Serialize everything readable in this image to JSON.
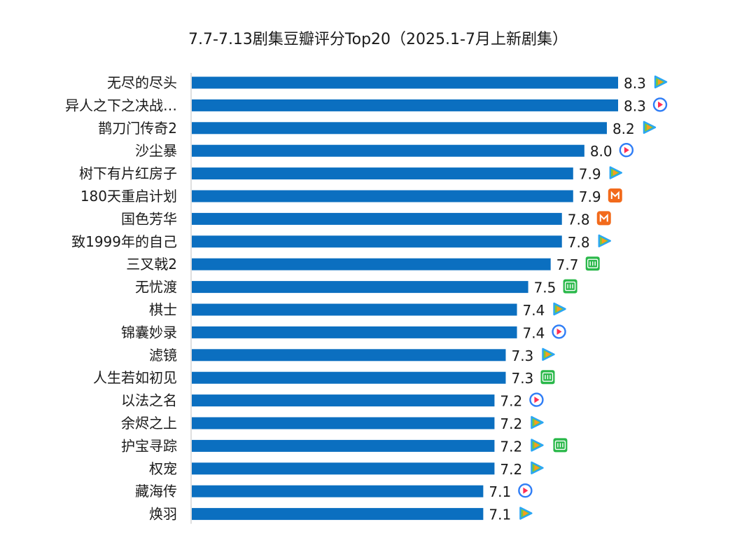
{
  "title": "7.7-7.13剧集豆瓣评分Top20（2025.1-7月上新剧集）",
  "colors": {
    "bar": "#0b6fc0",
    "tencent_blue": "#2aa6f4",
    "tencent_green": "#7cc83a",
    "tencent_orange": "#ff9a1f",
    "youku_red": "#ff2d55",
    "youku_blue": "#2f7df6",
    "mango_orange": "#f26a1b",
    "iqiyi_green": "#2ab84a"
  },
  "chart_data": {
    "type": "bar",
    "orientation": "horizontal",
    "title": "7.7-7.13剧集豆瓣评分Top20（2025.1-7月上新剧集）",
    "xlabel": "",
    "ylabel": "",
    "xlim": [
      4.5,
      8.3
    ],
    "grid": false,
    "legend": "none",
    "categories": [
      "无尽的尽头",
      "异人之下之决战…",
      "鹊刀门传奇2",
      "沙尘暴",
      "树下有片红房子",
      "180天重启计划",
      "国色芳华",
      "致1999年的自己",
      "三叉戟2",
      "无忧渡",
      "棋士",
      "锦囊妙录",
      "滤镜",
      "人生若如初见",
      "以法之名",
      "余烬之上",
      "护宝寻踪",
      "权宠",
      "藏海传",
      "焕羽"
    ],
    "values": [
      8.3,
      8.3,
      8.2,
      8.0,
      7.9,
      7.9,
      7.8,
      7.8,
      7.7,
      7.5,
      7.4,
      7.4,
      7.3,
      7.3,
      7.2,
      7.2,
      7.2,
      7.2,
      7.1,
      7.1
    ],
    "value_labels": [
      "8.3",
      "8.3",
      "8.2",
      "8.0",
      "7.9",
      "7.9",
      "7.8",
      "7.8",
      "7.7",
      "7.5",
      "7.4",
      "7.4",
      "7.3",
      "7.3",
      "7.2",
      "7.2",
      "7.2",
      "7.2",
      "7.1",
      "7.1"
    ],
    "platform_icons": [
      [
        "tencent-video-icon"
      ],
      [
        "youku-icon"
      ],
      [
        "tencent-video-icon"
      ],
      [
        "youku-icon"
      ],
      [
        "tencent-video-icon"
      ],
      [
        "mango-tv-icon"
      ],
      [
        "mango-tv-icon"
      ],
      [
        "tencent-video-icon"
      ],
      [
        "iqiyi-icon"
      ],
      [
        "iqiyi-icon"
      ],
      [
        "tencent-video-icon"
      ],
      [
        "youku-icon"
      ],
      [
        "tencent-video-icon"
      ],
      [
        "iqiyi-icon"
      ],
      [
        "youku-icon"
      ],
      [
        "tencent-video-icon"
      ],
      [
        "tencent-video-icon",
        "iqiyi-icon"
      ],
      [
        "tencent-video-icon"
      ],
      [
        "youku-icon"
      ],
      [
        "tencent-video-icon"
      ]
    ]
  }
}
